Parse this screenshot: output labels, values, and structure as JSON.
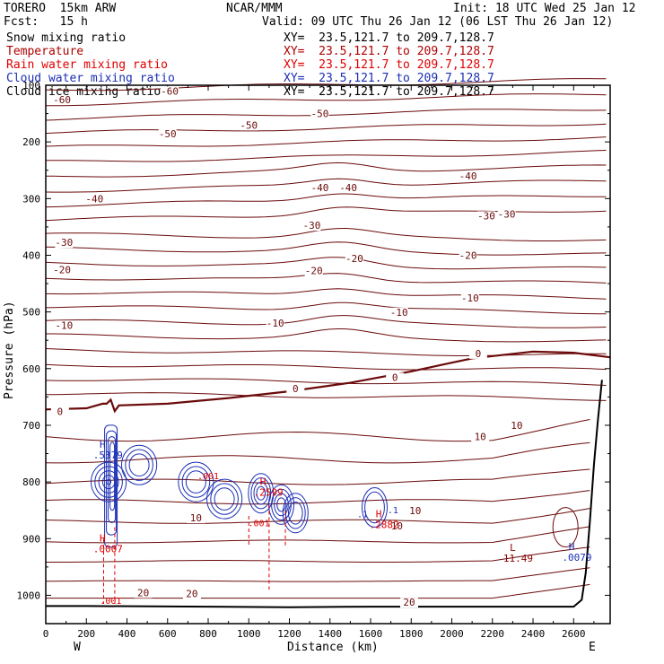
{
  "header": {
    "model": "TORERO  15km ARW",
    "center": "NCAR/MMM",
    "init": "Init: 18 UTC Wed 25 Jan 12",
    "fcst": "Fcst:   15 h",
    "valid": "Valid: 09 UTC Thu 26 Jan 12 (06 LST Thu 26 Jan 12)",
    "fields": [
      {
        "name": "Snow mixing ratio",
        "xy": "XY=  23.5,121.7 to 209.7,128.7",
        "color": "#000000"
      },
      {
        "name": "Temperature",
        "xy": "XY=  23.5,121.7 to 209.7,128.7",
        "color": "#b00000"
      },
      {
        "name": "Rain water mixing ratio",
        "xy": "XY=  23.5,121.7 to 209.7,128.7",
        "color": "#e00000"
      },
      {
        "name": "Cloud water mixing ratio",
        "xy": "XY=  23.5,121.7 to 209.7,128.7",
        "color": "#1b2fb5"
      },
      {
        "name": "Cloud ice mixing ratio",
        "xy": "XY=  23.5,121.7 to 209.7,128.7",
        "color": "#000000"
      }
    ]
  },
  "chart_data": {
    "type": "contour cross-section",
    "xlabel": "Distance (km)",
    "ylabel": "Pressure (hPa)",
    "xlim": [
      0,
      2780
    ],
    "ylim": [
      1050,
      100
    ],
    "x_ticks": [
      0,
      100,
      200,
      300,
      400,
      500,
      600,
      700,
      800,
      900,
      1000,
      1100,
      1200,
      1300,
      1400,
      1500,
      1600,
      1700,
      1800,
      1900,
      2000,
      2100,
      2200,
      2300,
      2400,
      2500,
      2600,
      2700
    ],
    "x_tick_labels": [
      "0",
      "200",
      "400",
      "600",
      "800",
      "1000",
      "1200",
      "1400",
      "1600",
      "1800",
      "2000",
      "2200",
      "2400",
      "2600"
    ],
    "x_tick_label_values": [
      0,
      200,
      400,
      600,
      800,
      1000,
      1200,
      1400,
      1600,
      1800,
      2000,
      2200,
      2400,
      2600
    ],
    "y_ticks": [
      100,
      150,
      200,
      250,
      300,
      350,
      400,
      450,
      500,
      550,
      600,
      650,
      700,
      750,
      800,
      850,
      900,
      950,
      1000,
      1050
    ],
    "y_tick_labels": [
      "100",
      "200",
      "300",
      "400",
      "500",
      "600",
      "700",
      "800",
      "900",
      "1000"
    ],
    "y_tick_label_values": [
      100,
      200,
      300,
      400,
      500,
      600,
      700,
      800,
      900,
      1000
    ],
    "x_end_labels": {
      "left": "W",
      "right": "E"
    },
    "colors": {
      "temperature": "#6b0a0a",
      "freezing_line": "#6b0a0a",
      "rain": "#e00000",
      "cloud_water": "#1b2fb5",
      "terrain": "#000000"
    },
    "isotherm_labels": [
      {
        "text": "-60",
        "x": 80,
        "p": 130
      },
      {
        "text": "-60",
        "x": 610,
        "p": 115
      },
      {
        "text": "-50",
        "x": 1350,
        "p": 155
      },
      {
        "text": "-50",
        "x": 1000,
        "p": 175
      },
      {
        "text": "-50",
        "x": 600,
        "p": 190
      },
      {
        "text": "-40",
        "x": 2080,
        "p": 265
      },
      {
        "text": "-40",
        "x": 1350,
        "p": 285
      },
      {
        "text": "-40",
        "x": 1490,
        "p": 285
      },
      {
        "text": "-40",
        "x": 240,
        "p": 305
      },
      {
        "text": "-30",
        "x": 2170,
        "p": 335
      },
      {
        "text": "-30",
        "x": 2270,
        "p": 332
      },
      {
        "text": "-30",
        "x": 1310,
        "p": 352
      },
      {
        "text": "-30",
        "x": 90,
        "p": 382
      },
      {
        "text": "-20",
        "x": 2080,
        "p": 405
      },
      {
        "text": "-20",
        "x": 1520,
        "p": 410
      },
      {
        "text": "-20",
        "x": 1320,
        "p": 432
      },
      {
        "text": "-20",
        "x": 80,
        "p": 430
      },
      {
        "text": "-10",
        "x": 2090,
        "p": 480
      },
      {
        "text": "-10",
        "x": 1740,
        "p": 505
      },
      {
        "text": "-10",
        "x": 1130,
        "p": 524
      },
      {
        "text": "-10",
        "x": 90,
        "p": 528
      },
      {
        "text": "0",
        "x": 2130,
        "p": 578
      },
      {
        "text": "0",
        "x": 1720,
        "p": 620
      },
      {
        "text": "0",
        "x": 1230,
        "p": 640
      },
      {
        "text": "0",
        "x": 70,
        "p": 680
      },
      {
        "text": "10",
        "x": 2320,
        "p": 705
      },
      {
        "text": "10",
        "x": 2140,
        "p": 725
      },
      {
        "text": "10",
        "x": 1820,
        "p": 855
      },
      {
        "text": "10",
        "x": 1730,
        "p": 882
      },
      {
        "text": "10",
        "x": 740,
        "p": 868
      },
      {
        "text": "20",
        "x": 480,
        "p": 1000
      },
      {
        "text": "20",
        "x": 720,
        "p": 1002
      },
      {
        "text": "20",
        "x": 1790,
        "p": 1017
      }
    ],
    "extrema": [
      {
        "kind": "H",
        "value": ".5379",
        "x": 280,
        "p": 740,
        "field": "cloud water"
      },
      {
        "kind": "H",
        "value": ".0007",
        "x": 280,
        "p": 905,
        "field": "rain water"
      },
      {
        "kind": "H",
        "value": ".2599",
        "x": 1070,
        "p": 805,
        "field": "rain water"
      },
      {
        "kind": "H",
        "value": ".2882",
        "x": 1640,
        "p": 862,
        "field": "rain water"
      },
      {
        "kind": "H",
        "value": ".0079",
        "x": 2590,
        "p": 920,
        "field": "cloud water"
      },
      {
        "kind": "L",
        "value": "11.49",
        "x": 2300,
        "p": 922,
        "field": "temperature"
      }
    ],
    "contour_labels": [
      {
        "text": ".001",
        "x": 320,
        "p": 1015
      },
      {
        "text": ".001",
        "x": 1050,
        "p": 878
      },
      {
        "text": ".001",
        "x": 800,
        "p": 795
      },
      {
        "text": ".1",
        "x": 1710,
        "p": 855
      },
      {
        "text": ".1",
        "x": 1560,
        "p": 862
      }
    ],
    "terrain": [
      [
        0,
        1019
      ],
      [
        200,
        1019
      ],
      [
        800,
        1020
      ],
      [
        1200,
        1021
      ],
      [
        1600,
        1020
      ],
      [
        2000,
        1020
      ],
      [
        2400,
        1020
      ],
      [
        2600,
        1020
      ],
      [
        2640,
        1008
      ],
      [
        2660,
        960
      ],
      [
        2680,
        870
      ],
      [
        2700,
        770
      ],
      [
        2720,
        690
      ],
      [
        2740,
        620
      ]
    ]
  }
}
